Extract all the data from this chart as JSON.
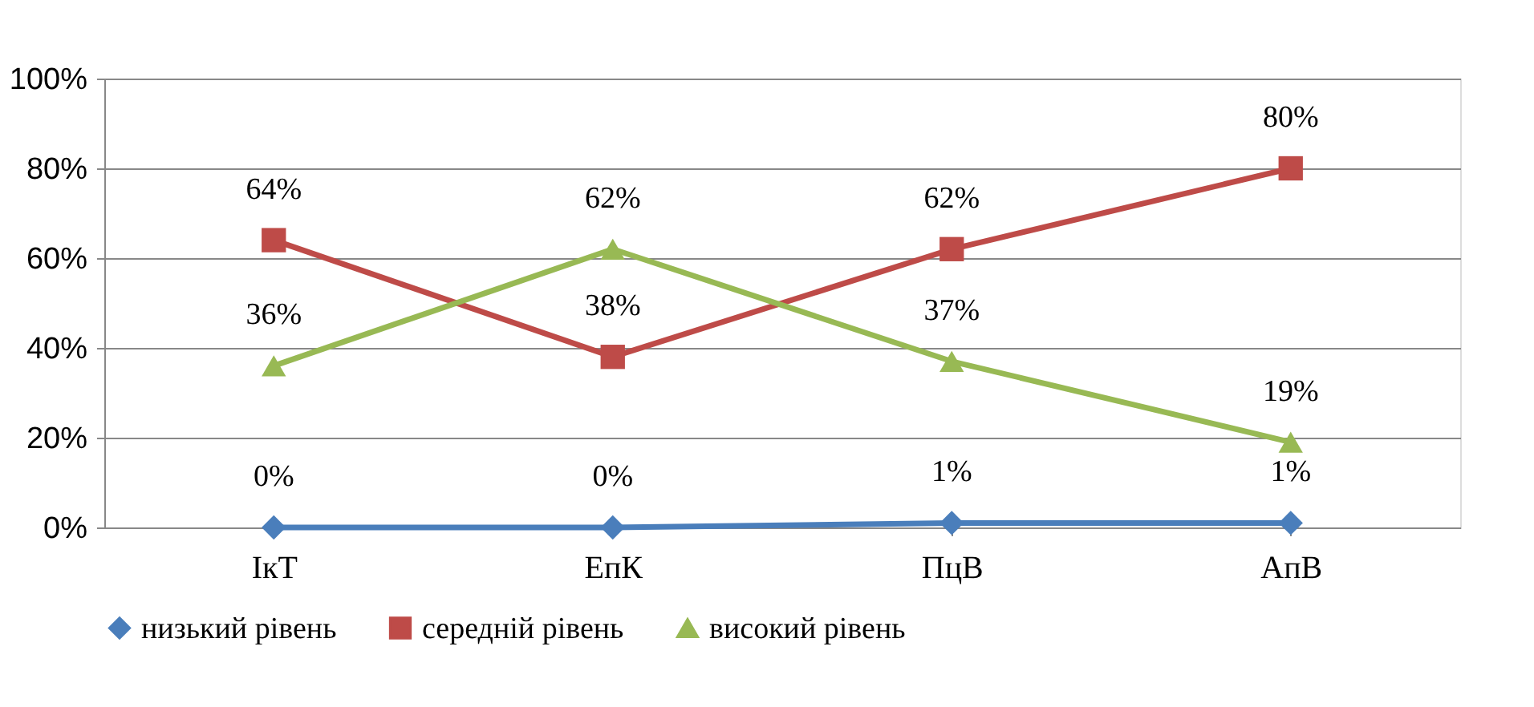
{
  "chart_data": {
    "type": "line",
    "categories": [
      "ІкТ",
      "ЕпК",
      "ПцВ",
      "АпВ"
    ],
    "series": [
      {
        "name": "низький рівень",
        "color": "#4a7ebb",
        "marker": "diamond",
        "values": [
          0,
          0,
          1,
          1
        ],
        "value_labels": [
          "0%",
          "0%",
          "1%",
          "1%"
        ]
      },
      {
        "name": "середній рівень",
        "color": "#be4b48",
        "marker": "square",
        "values": [
          64,
          38,
          62,
          80
        ],
        "value_labels": [
          "64%",
          "38%",
          "62%",
          "80%"
        ]
      },
      {
        "name": "високий рівень",
        "color": "#98b954",
        "marker": "triangle",
        "values": [
          36,
          62,
          37,
          19
        ],
        "value_labels": [
          "36%",
          "62%",
          "37%",
          "19%"
        ]
      }
    ],
    "ylim": [
      0,
      100
    ],
    "yticks": [
      {
        "value": 0,
        "label": "0%"
      },
      {
        "value": 20,
        "label": "20%"
      },
      {
        "value": 40,
        "label": "40%"
      },
      {
        "value": 60,
        "label": "60%"
      },
      {
        "value": 80,
        "label": "80%"
      },
      {
        "value": 100,
        "label": "100%"
      }
    ],
    "grid": "y",
    "legend": "bottom",
    "line_style": "solid"
  }
}
